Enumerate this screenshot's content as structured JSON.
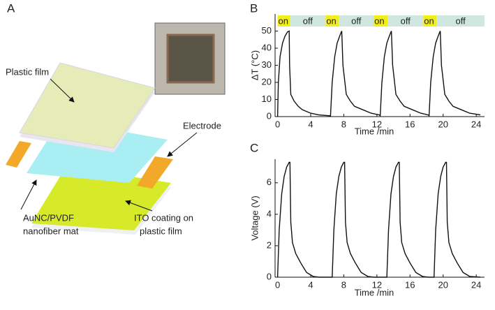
{
  "diagram": {
    "panel_label": "A",
    "labels": [
      "Plastic film",
      "Electrode",
      "AuNC/PVDF",
      "nanofiber mat",
      "ITO coating on",
      "plastic film"
    ]
  },
  "chart_data": [
    {
      "type": "line",
      "panel_label": "B",
      "x_label": "Time /min",
      "y_label": "ΔT (°C)",
      "xlim": [
        -0.3,
        25
      ],
      "ylim": [
        0,
        60
      ],
      "xticks": [
        0,
        4,
        8,
        12,
        16,
        20,
        24
      ],
      "yticks": [
        0,
        10,
        20,
        30,
        40,
        50
      ],
      "annotations": [
        {
          "label": "on",
          "start": 0,
          "end": 1.5
        },
        {
          "label": "off",
          "start": 1.5,
          "end": 5.8
        },
        {
          "label": "on",
          "start": 5.8,
          "end": 7.4
        },
        {
          "label": "off",
          "start": 7.4,
          "end": 11.6
        },
        {
          "label": "on",
          "start": 11.6,
          "end": 13.3
        },
        {
          "label": "off",
          "start": 13.3,
          "end": 17.6
        },
        {
          "label": "on",
          "start": 17.6,
          "end": 19.2
        },
        {
          "label": "off",
          "start": 19.2,
          "end": 25
        }
      ],
      "on_color": "#f2ee1c",
      "off_color": "#cfe6e1",
      "series": [
        {
          "color": "#111111",
          "x": [
            0,
            0.1,
            0.3,
            0.6,
            0.9,
            1.2,
            1.4,
            1.45,
            1.6,
            2,
            2.5,
            3,
            4,
            5,
            6.3,
            6.4,
            6.6,
            6.9,
            7.2,
            7.5,
            7.7,
            7.75,
            7.9,
            8.3,
            8.8,
            9.3,
            10.3,
            11.3,
            12.3,
            12.4,
            12.6,
            12.9,
            13.2,
            13.5,
            13.7,
            13.75,
            13.9,
            14.3,
            14.8,
            15.3,
            16.3,
            17.3,
            18.2,
            18.3,
            18.5,
            18.8,
            19.1,
            19.4,
            19.6,
            19.65,
            19.8,
            20.2,
            20.7,
            21.2,
            22.2,
            23.2,
            24.5
          ],
          "values": [
            0,
            20,
            35,
            43,
            47,
            49.5,
            50,
            30,
            13,
            9,
            6,
            4,
            2,
            1,
            0.5,
            0.5,
            20,
            35,
            43,
            47,
            49.5,
            50,
            30,
            13,
            9,
            6,
            4,
            2,
            1,
            0.5,
            20,
            35,
            43,
            47,
            49.5,
            50,
            30,
            13,
            9,
            6,
            4,
            2,
            1,
            0.5,
            20,
            35,
            43,
            47,
            49.5,
            50,
            30,
            13,
            9,
            6,
            4,
            2,
            1
          ]
        }
      ]
    },
    {
      "type": "line",
      "panel_label": "C",
      "x_label": "Time /min",
      "y_label": "Voltage (V)",
      "xlim": [
        -0.3,
        25
      ],
      "ylim": [
        0,
        7.5
      ],
      "xticks": [
        0,
        4,
        8,
        12,
        16,
        20,
        24
      ],
      "yticks": [
        0,
        2,
        4,
        6
      ],
      "series": [
        {
          "color": "#111111",
          "x": [
            0,
            0.2,
            0.5,
            0.8,
            1.1,
            1.4,
            1.5,
            1.6,
            1.8,
            2.2,
            2.8,
            3.5,
            4.3,
            5,
            6.6,
            6.8,
            7.1,
            7.4,
            7.7,
            8.0,
            8.1,
            8.2,
            8.4,
            8.8,
            9.4,
            10.1,
            10.9,
            11.6,
            13.2,
            13.4,
            13.7,
            14.0,
            14.3,
            14.6,
            14.7,
            14.8,
            15.0,
            15.4,
            16.0,
            16.7,
            17.5,
            18.2,
            18.9,
            19.1,
            19.4,
            19.7,
            20.0,
            20.3,
            20.4,
            20.5,
            20.7,
            21.1,
            21.7,
            22.4,
            23.2,
            24.5
          ],
          "values": [
            0,
            3,
            5.3,
            6.4,
            7.0,
            7.3,
            7.3,
            3.5,
            2.2,
            1.5,
            0.9,
            0.3,
            0.05,
            0,
            0,
            3,
            5.3,
            6.4,
            7.0,
            7.3,
            7.3,
            3.5,
            2.2,
            1.5,
            0.9,
            0.3,
            0.05,
            0,
            0,
            3,
            5.3,
            6.4,
            7.0,
            7.3,
            7.3,
            3.5,
            2.2,
            1.5,
            0.9,
            0.3,
            0.05,
            0,
            0,
            3,
            5.3,
            6.4,
            7.0,
            7.3,
            7.3,
            3.5,
            2.2,
            1.5,
            0.9,
            0.3,
            0.05,
            0
          ]
        }
      ]
    }
  ]
}
